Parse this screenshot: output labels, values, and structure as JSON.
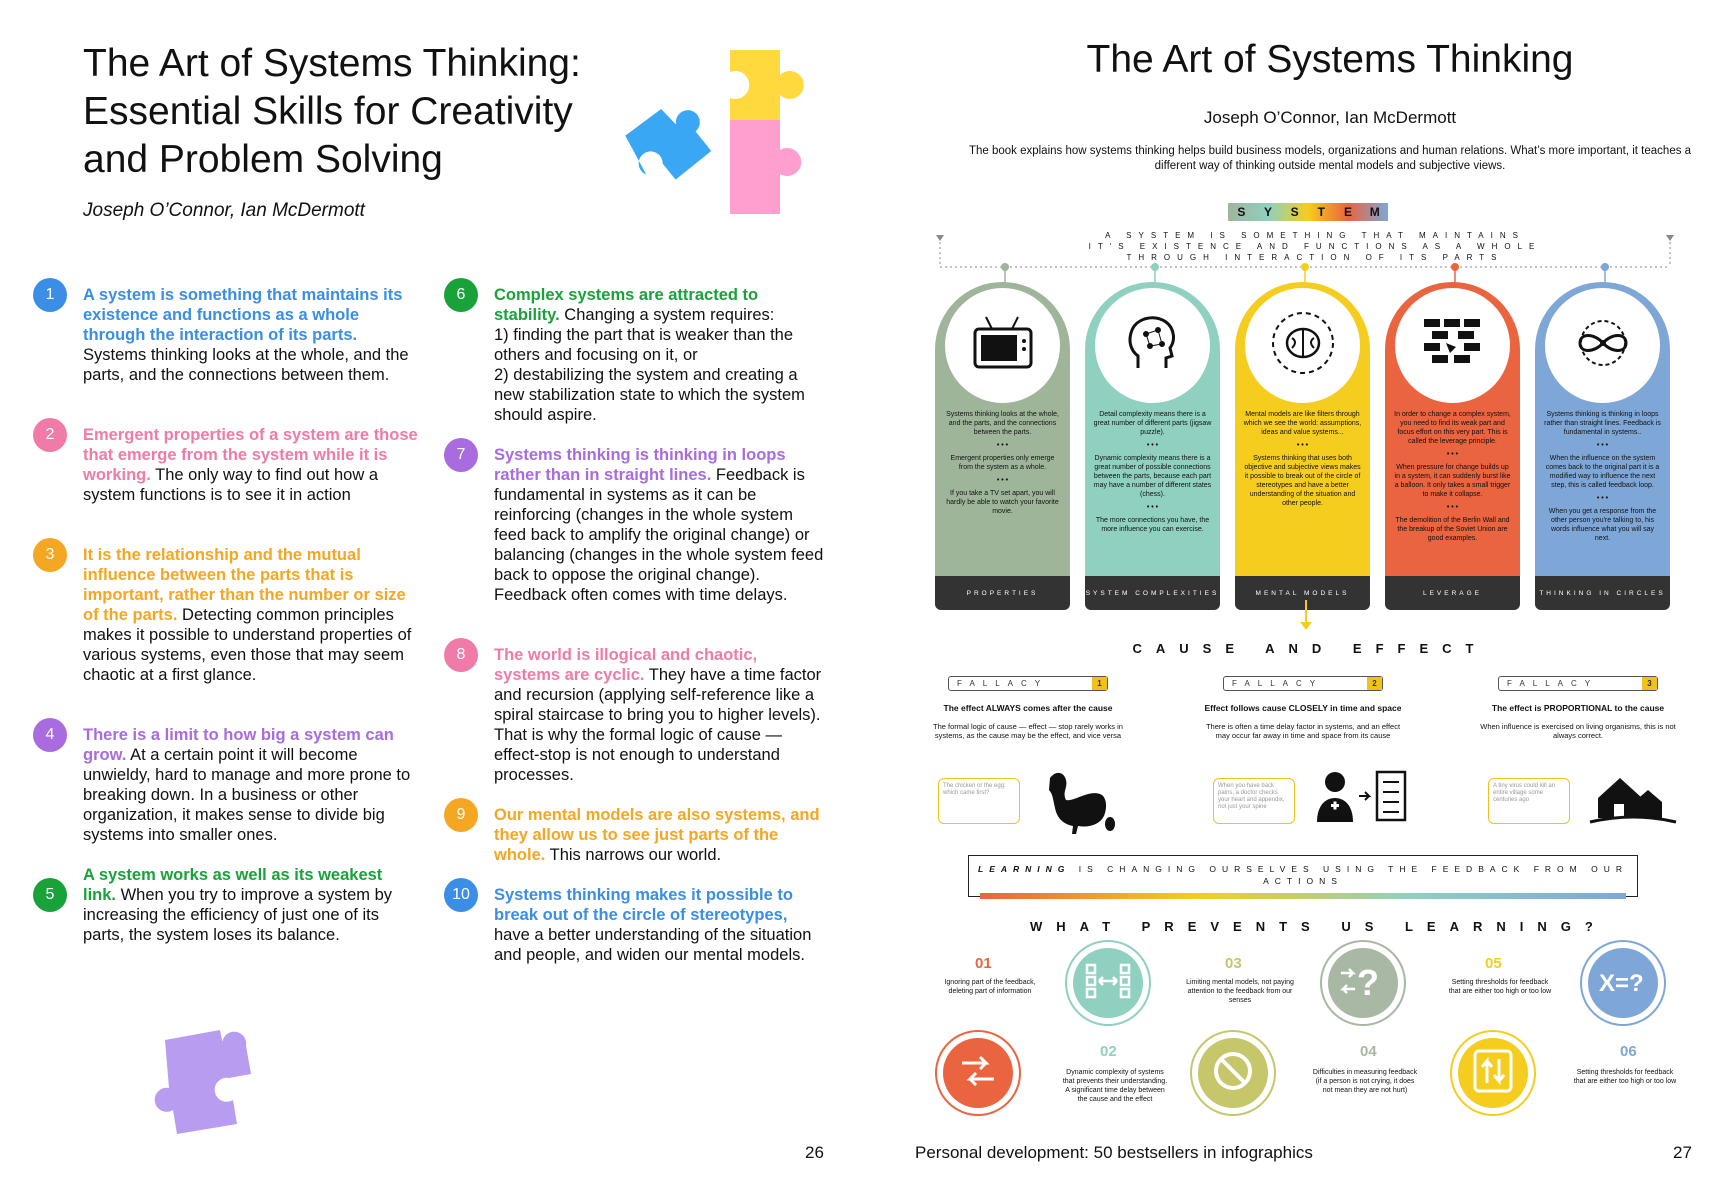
{
  "left_page": {
    "title": "The Art of Systems Thinking: Essential Skills for Creativity and Problem Solving",
    "authors": "Joseph O’Connor, Ian McDermott",
    "page_number": "26",
    "points": [
      {
        "n": "1",
        "highlight": "A system is something that maintains its existence and functions as a whole through the interaction of its parts.",
        "text": " Systems thinking looks at the whole, and the parts, and the connections between them."
      },
      {
        "n": "2",
        "highlight": "Emergent properties of a system are those that emerge from the system while it is working.",
        "text": " The only way to find out how a system functions is to see it in action"
      },
      {
        "n": "3",
        "highlight": "It is the relationship and the mutual influence between the parts that is important, rather than the number or size of the parts.",
        "text": " Detecting common principles makes it possible to understand properties of various systems, even those that may seem chaotic at a first glance."
      },
      {
        "n": "4",
        "highlight": "There is a limit to how big a system can grow.",
        "text": " At a certain point it will become unwieldy, hard to manage and more prone to breaking down. In a business or other organization, it makes sense to divide big systems into smaller ones."
      },
      {
        "n": "5",
        "highlight": "A system works as well as its weakest link.",
        "text": " When you try to improve a system by increasing the efficiency of just one of its parts, the system loses its balance."
      },
      {
        "n": "6",
        "highlight": "Complex systems are attracted to stability.",
        "text": " Changing a system requires:",
        "list": [
          "1) finding the part that is weaker than the others and focusing on it, or",
          "2) destabilizing the system and creating a new stabilization state to which the system should aspire."
        ]
      },
      {
        "n": "7",
        "highlight": "Systems thinking is thinking in loops rather than in straight lines.",
        "text": " Feedback is fundamental in systems as it can be reinforcing (changes in the whole system feed back to amplify the original change) or balancing (changes in the whole system feed back to oppose the original change). Feedback often comes with time delays."
      },
      {
        "n": "8",
        "highlight": "The world is illogical and chaotic, systems are cyclic.",
        "text": " They have a time factor and recursion (applying self-reference like a spiral staircase to bring you to higher levels). That is why the formal logic of cause — effect-stop is not enough to understand processes."
      },
      {
        "n": "9",
        "highlight": "Our mental models are also systems, and they allow us to see just parts of the whole.",
        "text": " This narrows our world."
      },
      {
        "n": "10",
        "highlight": "Systems thinking makes it possible to break out of the circle of stereotypes,",
        "text": " have a better understanding of the situation and people, and widen our mental models."
      }
    ]
  },
  "right_page": {
    "title": "The Art of Systems Thinking",
    "authors": "Joseph O’Connor, Ian McDermott",
    "intro": "The book explains how systems thinking helps build business models, organizations and human relations. What’s more important, it teaches a different way of thinking outside mental models and subjective views.",
    "system_letters": [
      "S",
      "Y",
      "S",
      "T",
      "E",
      "M"
    ],
    "system_definition": "A system is something that maintains it's existence and functions as a whole through interaction of its parts",
    "columns": [
      {
        "color": "#9fb59a",
        "icon": "tv-icon",
        "paras": [
          "Systems thinking looks at the whole, and the parts, and the connections between the parts.",
          "Emergent properties only emerge from the system as a whole.",
          "If you take a TV set apart, you will hardly be able to watch your favorite movie."
        ],
        "label": "Properties"
      },
      {
        "color": "#8fd0c0",
        "icon": "head-network-icon",
        "paras": [
          "Detail complexity means there is a great number of different parts (jigsaw puzzle).",
          "Dynamic complexity means there is a great number of possible connections between the parts, because each part may have a number of different states (chess).",
          "The more connections you have, the more influence you can exercise."
        ],
        "label": "System complexities"
      },
      {
        "color": "#f5cd1e",
        "icon": "brain-icon",
        "paras": [
          "Mental models are like filters through which we see the world: assumptions, ideas and value systems...",
          "Systems thinking that uses both objective and subjective views makes it possible to break out of the circle of stereotypes and have a better understanding of the situation and other people."
        ],
        "label": "Mental models"
      },
      {
        "color": "#e9643f",
        "icon": "brick-wall-icon",
        "paras": [
          "In order to change a complex system, you need to find its weak part and focus effort on this very part. This is called the leverage principle.",
          "When pressure for change builds up in a system, it can suddenly burst like a balloon. It only takes a small trigger to make it collapse.",
          "The demolition of the Berlin Wall and the breakup of the Soviet Union are good examples."
        ],
        "label": "Leverage"
      },
      {
        "color": "#7ea7d8",
        "icon": "infinity-loop-icon",
        "paras": [
          "Systems thinking is thinking in loops rather than straight lines. Feedback is fundamental in systems..",
          "When the influence on the system comes back to the original part it is a modified way to influence the next step, this is called feedback loop.",
          "When you get a response from the other person you're talking to, his words influence what you will say next."
        ],
        "label": "Thinking in circles"
      }
    ],
    "separator": "• • •",
    "cause_effect_title": "Cause and effect",
    "fallacy_word": "Fallacy",
    "fallacies": [
      {
        "n": "1",
        "head": "The effect ALWAYS comes after the cause",
        "body": "The formal logic of cause — effect — stop rarely works in systems, as the cause may be the effect, and vice versa",
        "bubble": "The chicken or the egg: which came first?",
        "icon": "chicken-egg-icon"
      },
      {
        "n": "2",
        "head": "Effect follows cause CLOSELY in time and space",
        "body": "There is often a time delay factor in systems, and an effect may occur far away in time and space from its cause",
        "bubble": "When you have back pains, a doctor checks your heart and appendix, not just your spine",
        "icon": "doctor-checklist-icon"
      },
      {
        "n": "3",
        "head": "The effect is PROPORTIONAL to the cause",
        "body": "When influence is exercised on living organisms, this is not always correct.",
        "bubble": "A tiny virus could kill an entire village some centuries ago",
        "icon": "village-icon"
      }
    ],
    "learning_word": "Learning",
    "learning_rest": "is changing ourselves using the feedback from our actions",
    "prevents_title": "What prevents us learning?",
    "prevents": [
      {
        "n": "01",
        "text": "Ignoring part of the feedback, deleting part of information",
        "color": "#e9643f",
        "icon": "arrows-swap-icon"
      },
      {
        "n": "02",
        "text": "Dynamic complexity of systems that prevents their understanding. A significant time delay between the cause and the effect",
        "color": "#8fd0c0",
        "icon": "connect-nodes-icon"
      },
      {
        "n": "03",
        "text": "Limiting mental models, not paying attention to the feedback from our senses",
        "color": "#c5c76a",
        "icon": "prohibited-icon"
      },
      {
        "n": "04",
        "text": "Difficulties in measuring feedback (if a person is not crying, it does not mean they are not hurt)",
        "color": "#a8b8a4",
        "icon": "question-arrows-icon"
      },
      {
        "n": "05",
        "text": "Setting thresholds for feedback that are either too high or too low",
        "color": "#f5cd1e",
        "icon": "up-down-arrows-icon"
      },
      {
        "n": "06",
        "text": "Setting thresholds for feedback that are either too high or too low",
        "color": "#7ea7d8",
        "icon": "x-equals-question-icon"
      }
    ],
    "footer_title": "Personal development: 50 bestsellers in infographics",
    "page_number": "27"
  }
}
